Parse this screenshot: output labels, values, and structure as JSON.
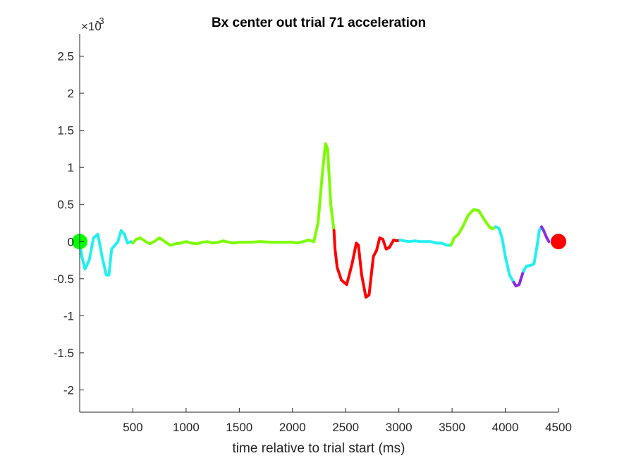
{
  "chart_data": {
    "type": "line",
    "title": "Bx  center out trial 71 acceleration",
    "xlabel": "time relative to trial start (ms)",
    "ylabel": "",
    "y_multiplier": {
      "base": "×10",
      "exponent": "-3"
    },
    "xlim": [
      0,
      4500
    ],
    "ylim": [
      -2.3,
      2.8
    ],
    "x_ticks": [
      500,
      1000,
      1500,
      2000,
      2500,
      3000,
      3500,
      4000,
      4500
    ],
    "x_tick_labels": [
      "500",
      "1000",
      "1500",
      "2000",
      "2500",
      "3000",
      "3500",
      "4000",
      "4500"
    ],
    "y_ticks": [
      -2,
      -1.5,
      -1,
      -0.5,
      0,
      0.5,
      1,
      1.5,
      2,
      2.5
    ],
    "y_tick_labels": [
      "-2",
      "-1.5",
      "-1",
      "-0.5",
      "0",
      "0.5",
      "1",
      "1.5",
      "2",
      "2.5"
    ],
    "grid": false,
    "legend": "none",
    "colors": {
      "cyan": "#22f0f0",
      "green": "#7cfc00",
      "red": "#ff0000",
      "purple": "#8a2be2",
      "start_marker": "#00ff00",
      "end_marker": "#ff0000",
      "axis": "#262626"
    },
    "segments": [
      {
        "color": "cyan",
        "points": [
          [
            0,
            0
          ],
          [
            20,
            -0.2
          ],
          [
            50,
            -0.37
          ],
          [
            90,
            -0.25
          ],
          [
            130,
            0.05
          ],
          [
            170,
            0.1
          ],
          [
            210,
            -0.2
          ],
          [
            250,
            -0.45
          ],
          [
            275,
            -0.45
          ],
          [
            300,
            -0.1
          ],
          [
            330,
            -0.05
          ],
          [
            360,
            0.0
          ],
          [
            390,
            0.15
          ],
          [
            420,
            0.1
          ],
          [
            450,
            -0.02
          ],
          [
            480,
            0.0
          ],
          [
            500,
            -0.02
          ]
        ]
      },
      {
        "color": "green",
        "points": [
          [
            500,
            -0.02
          ],
          [
            530,
            0.03
          ],
          [
            570,
            0.05
          ],
          [
            620,
            0.0
          ],
          [
            660,
            -0.03
          ],
          [
            700,
            0.0
          ],
          [
            750,
            0.05
          ],
          [
            800,
            0.0
          ],
          [
            850,
            -0.05
          ],
          [
            900,
            -0.03
          ],
          [
            950,
            -0.02
          ],
          [
            1000,
            0.0
          ],
          [
            1050,
            -0.02
          ],
          [
            1100,
            -0.03
          ],
          [
            1150,
            -0.01
          ],
          [
            1200,
            0.0
          ],
          [
            1250,
            -0.02
          ],
          [
            1300,
            -0.01
          ],
          [
            1350,
            0.01
          ],
          [
            1400,
            -0.01
          ],
          [
            1450,
            -0.02
          ],
          [
            1500,
            -0.01
          ],
          [
            1600,
            -0.01
          ],
          [
            1700,
            0.0
          ],
          [
            1800,
            -0.01
          ],
          [
            1900,
            -0.01
          ],
          [
            2000,
            -0.01
          ],
          [
            2050,
            -0.02
          ],
          [
            2100,
            0.0
          ],
          [
            2150,
            0.02
          ],
          [
            2200,
            0.0
          ],
          [
            2240,
            0.25
          ],
          [
            2280,
            0.9
          ],
          [
            2310,
            1.32
          ],
          [
            2330,
            1.25
          ],
          [
            2360,
            0.5
          ],
          [
            2390,
            0.15
          ]
        ]
      },
      {
        "color": "red",
        "points": [
          [
            2390,
            0.15
          ],
          [
            2400,
            -0.1
          ],
          [
            2420,
            -0.35
          ],
          [
            2460,
            -0.52
          ],
          [
            2510,
            -0.58
          ],
          [
            2560,
            -0.3
          ],
          [
            2600,
            -0.02
          ],
          [
            2620,
            -0.05
          ],
          [
            2650,
            -0.45
          ],
          [
            2690,
            -0.75
          ],
          [
            2720,
            -0.72
          ],
          [
            2760,
            -0.2
          ],
          [
            2790,
            -0.12
          ],
          [
            2820,
            0.05
          ],
          [
            2850,
            0.03
          ],
          [
            2880,
            -0.1
          ],
          [
            2910,
            -0.08
          ],
          [
            2950,
            0.02
          ],
          [
            2980,
            0.01
          ],
          [
            3010,
            0.02
          ]
        ]
      },
      {
        "color": "cyan",
        "points": [
          [
            3010,
            0.02
          ],
          [
            3050,
            0.01
          ],
          [
            3100,
            0.0
          ],
          [
            3150,
            0.01
          ],
          [
            3200,
            0.0
          ],
          [
            3250,
            0.0
          ],
          [
            3300,
            0.0
          ],
          [
            3350,
            -0.02
          ],
          [
            3400,
            -0.02
          ],
          [
            3450,
            -0.05
          ],
          [
            3490,
            -0.05
          ]
        ]
      },
      {
        "color": "green",
        "points": [
          [
            3490,
            -0.05
          ],
          [
            3520,
            0.05
          ],
          [
            3560,
            0.1
          ],
          [
            3600,
            0.2
          ],
          [
            3650,
            0.35
          ],
          [
            3700,
            0.43
          ],
          [
            3750,
            0.42
          ],
          [
            3800,
            0.3
          ],
          [
            3850,
            0.2
          ],
          [
            3880,
            0.17
          ],
          [
            3910,
            0.2
          ]
        ]
      },
      {
        "color": "cyan",
        "points": [
          [
            3910,
            0.2
          ],
          [
            3940,
            0.18
          ],
          [
            3970,
            0.05
          ],
          [
            4000,
            -0.2
          ],
          [
            4040,
            -0.45
          ],
          [
            4080,
            -0.55
          ]
        ]
      },
      {
        "color": "purple",
        "points": [
          [
            4080,
            -0.55
          ],
          [
            4100,
            -0.6
          ],
          [
            4130,
            -0.58
          ],
          [
            4170,
            -0.4
          ]
        ]
      },
      {
        "color": "cyan",
        "points": [
          [
            4170,
            -0.4
          ],
          [
            4200,
            -0.33
          ],
          [
            4240,
            -0.32
          ],
          [
            4270,
            -0.3
          ],
          [
            4300,
            -0.05
          ],
          [
            4320,
            0.15
          ],
          [
            4340,
            0.2
          ]
        ]
      },
      {
        "color": "purple",
        "points": [
          [
            4340,
            0.2
          ],
          [
            4360,
            0.15
          ],
          [
            4390,
            0.05
          ],
          [
            4410,
            0.0
          ]
        ]
      }
    ],
    "markers": [
      {
        "name": "start",
        "x": 0,
        "y": 0,
        "color": "start_marker"
      },
      {
        "name": "end",
        "x": 4500,
        "y": 0,
        "color": "end_marker"
      }
    ]
  }
}
